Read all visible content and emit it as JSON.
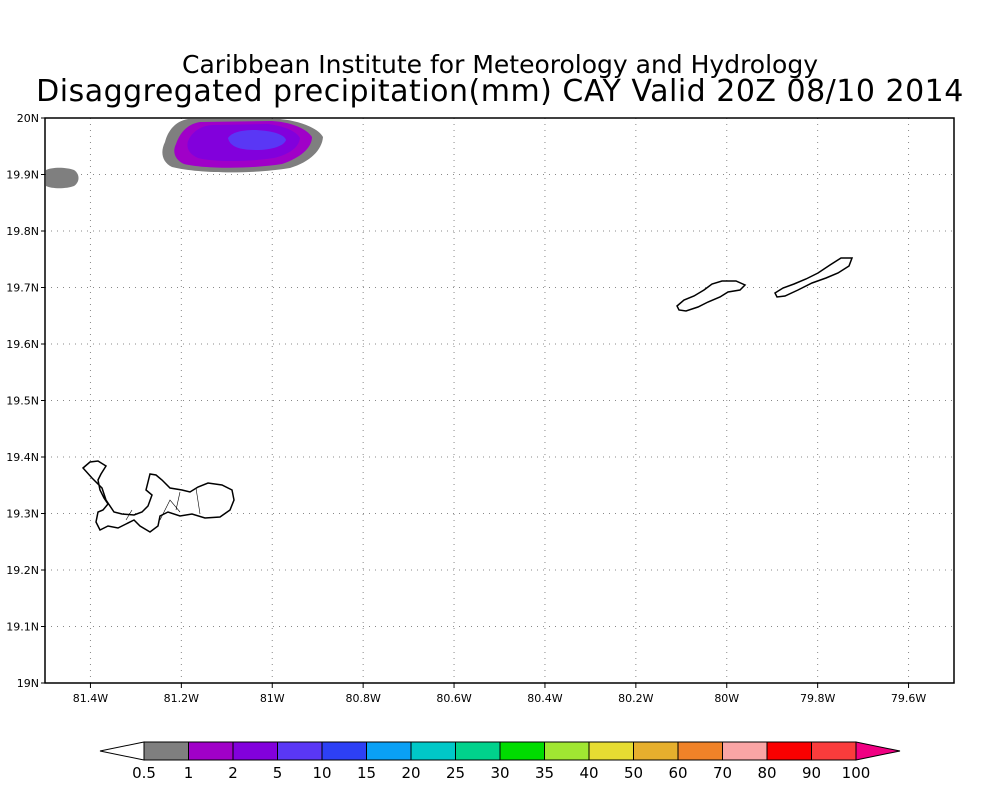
{
  "header": {
    "title": "Caribbean Institute for Meteorology and Hydrology",
    "subtitle": "Disaggregated precipitation(mm) CAY Valid 20Z 08/10 2014"
  },
  "map": {
    "lon_range": [
      -81.5,
      -79.5
    ],
    "lat_range": [
      19.0,
      20.0
    ],
    "grid": "dotted",
    "lon_ticks": [
      {
        "value": -81.4,
        "label": "81.4W"
      },
      {
        "value": -81.2,
        "label": "81.2W"
      },
      {
        "value": -81.0,
        "label": "81W"
      },
      {
        "value": -80.8,
        "label": "80.8W"
      },
      {
        "value": -80.6,
        "label": "80.6W"
      },
      {
        "value": -80.4,
        "label": "80.4W"
      },
      {
        "value": -80.2,
        "label": "80.2W"
      },
      {
        "value": -80.0,
        "label": "80W"
      },
      {
        "value": -79.8,
        "label": "79.8W"
      },
      {
        "value": -79.6,
        "label": "79.6W"
      }
    ],
    "lat_ticks": [
      {
        "value": 20.0,
        "label": "20N"
      },
      {
        "value": 19.9,
        "label": "19.9N"
      },
      {
        "value": 19.8,
        "label": "19.8N"
      },
      {
        "value": 19.7,
        "label": "19.7N"
      },
      {
        "value": 19.6,
        "label": "19.6N"
      },
      {
        "value": 19.5,
        "label": "19.5N"
      },
      {
        "value": 19.4,
        "label": "19.4N"
      },
      {
        "value": 19.3,
        "label": "19.3N"
      },
      {
        "value": 19.2,
        "label": "19.2N"
      },
      {
        "value": 19.1,
        "label": "19.1N"
      },
      {
        "value": 19.0,
        "label": "19N"
      }
    ]
  },
  "colorbar": {
    "labels": [
      "0.5",
      "1",
      "2",
      "5",
      "10",
      "15",
      "20",
      "25",
      "30",
      "35",
      "40",
      "50",
      "60",
      "70",
      "80",
      "90",
      "100"
    ],
    "colors": [
      "#ffffff",
      "#7f7f7f",
      "#a000c8",
      "#8200dc",
      "#5a37f5",
      "#2d40f5",
      "#0aa0f5",
      "#00c8c8",
      "#00d28c",
      "#00dc00",
      "#a0e632",
      "#e6dc32",
      "#e6af2d",
      "#f08228",
      "#faa5a5",
      "#fa0000",
      "#fa3c3c",
      "#f00082"
    ]
  }
}
